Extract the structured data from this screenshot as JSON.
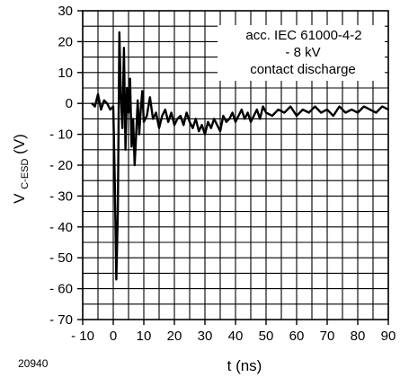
{
  "chart_data": {
    "type": "line",
    "figure_id": "20940",
    "xlabel": "t (ns)",
    "ylabel_main": "V",
    "ylabel_sub": "C-ESD",
    "ylabel_unit": " (V)",
    "xlim": [
      -10,
      90
    ],
    "ylim": [
      -70,
      30
    ],
    "x_ticks": [
      -10,
      0,
      10,
      20,
      30,
      40,
      50,
      60,
      70,
      80,
      90
    ],
    "x_tick_labels": [
      "- 10",
      "0",
      "10",
      "20",
      "30",
      "40",
      "50",
      "60",
      "70",
      "80",
      "90"
    ],
    "y_ticks": [
      30,
      20,
      10,
      0,
      -10,
      -20,
      -30,
      -40,
      -50,
      -60,
      -70
    ],
    "y_tick_labels": [
      "30",
      "20",
      "10",
      "0",
      "- 10",
      "- 20",
      "- 30",
      "- 40",
      "- 50",
      "- 60",
      "- 70"
    ],
    "x_minor_step": 5,
    "y_minor_step": 5,
    "grid": true,
    "annotation": [
      "acc. IEC 61000-4-2",
      "- 8 kV",
      "contact discharge"
    ],
    "series": [
      {
        "x": [
          -7,
          -6,
          -5,
          -4,
          -3,
          -2,
          -1,
          0,
          0.5,
          1,
          1.5,
          2,
          2.5,
          3,
          3.5,
          4,
          4.5,
          5,
          5.5,
          6,
          6.5,
          7,
          7.5,
          8,
          8.5,
          9,
          9.5,
          10,
          11,
          12,
          13,
          14,
          15,
          16,
          17,
          18,
          19,
          20,
          21,
          22,
          23,
          24,
          25,
          26,
          27,
          28,
          29,
          30,
          31,
          32,
          33,
          34,
          35,
          36,
          37,
          38,
          39,
          40,
          41,
          42,
          43,
          44,
          45,
          46,
          47,
          48,
          49,
          50,
          52,
          54,
          56,
          58,
          60,
          62,
          64,
          66,
          68,
          70,
          72,
          74,
          76,
          78,
          80,
          82,
          84,
          86,
          88,
          90
        ],
        "y": [
          0,
          -1,
          3,
          -2,
          1,
          0,
          -2,
          -1,
          -25,
          -57,
          -35,
          23,
          2,
          -8,
          18,
          -15,
          5,
          -3,
          8,
          -14,
          -5,
          -20,
          -10,
          1,
          -10,
          -2,
          4,
          -6,
          -4,
          2,
          -5,
          -3,
          -8,
          -4,
          -2,
          -6,
          -3,
          -7,
          -5,
          -4,
          -7,
          -3,
          -6,
          -8,
          -5,
          -9,
          -7,
          -10,
          -6,
          -8,
          -5,
          -7,
          -9,
          -4,
          -6,
          -5,
          -3,
          -6,
          -4,
          -2,
          -5,
          -3,
          -6,
          -4,
          -2,
          -5,
          -1,
          -3,
          -4,
          -2,
          -3,
          -1,
          -4,
          -2,
          -3,
          -1,
          -3,
          -2,
          -4,
          -1,
          -3,
          -2,
          -3,
          -1,
          -2,
          -3,
          -1,
          -2
        ]
      }
    ]
  }
}
